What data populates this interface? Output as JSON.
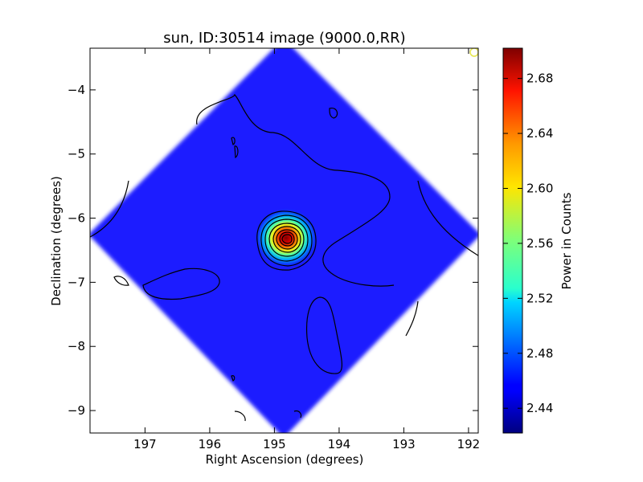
{
  "chart_data": {
    "type": "heatmap",
    "title": "sun, ID:30514 image (9000.0,RR)",
    "xlabel": "Right Ascension (degrees)",
    "ylabel": "Declination (degrees)",
    "xlim": [
      197.85,
      191.85
    ],
    "ylim": [
      -9.35,
      -3.35
    ],
    "x_inverted": true,
    "xticks": [
      197,
      196,
      195,
      194,
      193,
      192
    ],
    "yticks": [
      -4,
      -5,
      -6,
      -7,
      -8,
      -9
    ],
    "colorbar": {
      "label": "Power in Counts",
      "range": [
        2.422,
        2.702
      ],
      "ticks": [
        2.44,
        2.48,
        2.52,
        2.56,
        2.6,
        2.64,
        2.68
      ],
      "colormap": "jet"
    },
    "map": {
      "footprint": "diamond",
      "center": [
        194.85,
        -6.3
      ],
      "half_width_deg": 3.05,
      "background_value": 2.455,
      "background_color": "#1a1aff",
      "peak": {
        "ra": 194.8,
        "dec": -6.3,
        "value": 2.7
      },
      "marker": {
        "ra": 191.95,
        "dec": -3.42,
        "color": "#e6e64d"
      }
    },
    "grid": false
  }
}
